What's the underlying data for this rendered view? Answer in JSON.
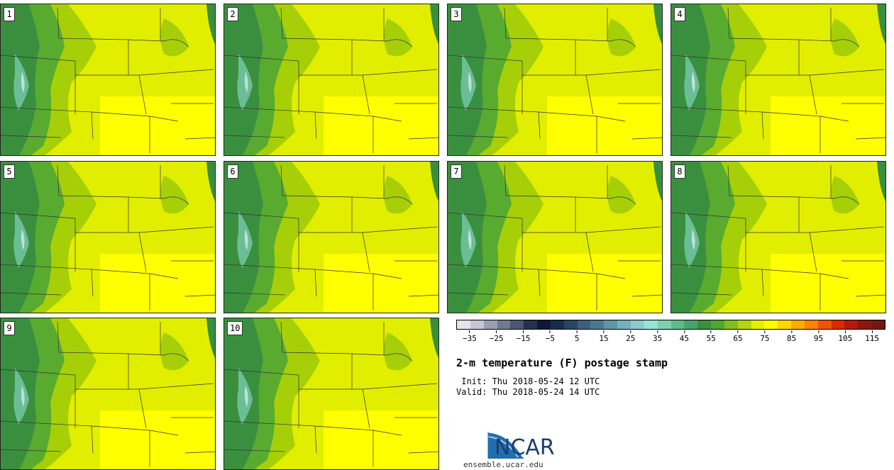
{
  "panels": [
    {
      "label": "1"
    },
    {
      "label": "2"
    },
    {
      "label": "3"
    },
    {
      "label": "4"
    },
    {
      "label": "5"
    },
    {
      "label": "6"
    },
    {
      "label": "7"
    },
    {
      "label": "8"
    },
    {
      "label": "9"
    },
    {
      "label": "10"
    }
  ],
  "colorbar": {
    "colors": [
      "#e3e3ea",
      "#c4c7d3",
      "#9aa0b2",
      "#707a91",
      "#4b5672",
      "#26314e",
      "#0e1a35",
      "#1a2c48",
      "#2a4562",
      "#3e5f7b",
      "#4e7791",
      "#6394a6",
      "#76b0bc",
      "#8ccbcb",
      "#98e3d5",
      "#7fcfae",
      "#63b98c",
      "#4aa36e",
      "#3a8f3f",
      "#52a531",
      "#83bc21",
      "#b4d40f",
      "#e3ee00",
      "#ffff00",
      "#ffd800",
      "#ffac00",
      "#ff8200",
      "#f25300",
      "#d62c00",
      "#b31a0c",
      "#8f160f",
      "#6e1a10"
    ],
    "ticks": [
      "−35",
      "−25",
      "−15",
      "−5",
      "5",
      "15",
      "25",
      "35",
      "45",
      "55",
      "65",
      "75",
      "85",
      "95",
      "105",
      "115"
    ]
  },
  "title": "2-m temperature (F) postage stamp",
  "init_line": " Init: Thu 2018-05-24 12 UTC",
  "valid_line": "Valid: Thu 2018-05-24 14 UTC",
  "logo": {
    "name": "NCAR",
    "url": "ensemble.ucar.edu"
  }
}
